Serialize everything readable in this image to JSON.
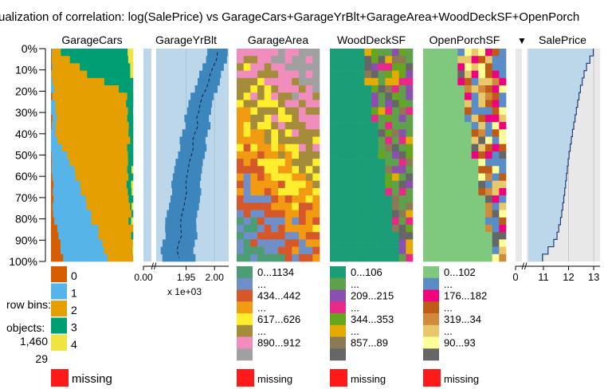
{
  "title": "ualization of correlation: log(SalePrice) vs GarageCars+GarageYrBlt+GarageArea+WoodDeckSF+OpenPorch",
  "y_ticks": [
    "0%",
    "10%",
    "20%",
    "30%",
    "40%",
    "50%",
    "60%",
    "70%",
    "80%",
    "90%",
    "100%"
  ],
  "row_bins_label": "row bins:",
  "row_bins_value": "29",
  "objects_label": "objects:",
  "objects_value": "1,460",
  "missing_label": "missing",
  "colors": {
    "missing": "#ff1a1a",
    "numeric_bg": "#bcd6ea",
    "numeric_bar": "#3c86bd",
    "sorted_bg": "#e8e8e8",
    "sorted_bar": "#bcd6ea",
    "sorted_line": "#1f3f7a"
  },
  "chart_data": {
    "type": "tableplot",
    "sort_by": "SalePrice",
    "sort_order": "descending",
    "y_percent_ticks": [
      0,
      10,
      20,
      30,
      40,
      50,
      60,
      70,
      80,
      90,
      100
    ],
    "columns": [
      {
        "name": "GarageCars",
        "kind": "categorical",
        "legend": [
          {
            "label": "0",
            "color": "#d55e00"
          },
          {
            "label": "1",
            "color": "#56b4e9"
          },
          {
            "label": "2",
            "color": "#e69f00"
          },
          {
            "label": "3",
            "color": "#009e73"
          },
          {
            "label": "4",
            "color": "#f0e442"
          }
        ],
        "approx_shares_top_to_bottom": [
          {
            "row_percent": 0,
            "shares": [
              0.0,
              0.02,
              0.1,
              0.82,
              0.06
            ]
          },
          {
            "row_percent": 10,
            "shares": [
              0.0,
              0.02,
              0.4,
              0.56,
              0.02
            ]
          },
          {
            "row_percent": 20,
            "shares": [
              0.0,
              0.02,
              0.9,
              0.08,
              0.0
            ]
          },
          {
            "row_percent": 40,
            "shares": [
              0.0,
              0.06,
              0.88,
              0.06,
              0.0
            ]
          },
          {
            "row_percent": 60,
            "shares": [
              0.01,
              0.3,
              0.64,
              0.05,
              0.0
            ]
          },
          {
            "row_percent": 80,
            "shares": [
              0.04,
              0.46,
              0.48,
              0.02,
              0.0
            ]
          },
          {
            "row_percent": 100,
            "shares": [
              0.15,
              0.53,
              0.31,
              0.01,
              0.0
            ]
          }
        ]
      },
      {
        "name": "GarageYrBlt",
        "kind": "numeric",
        "x_ticks": [
          "0.00",
          "1.95",
          "2.00"
        ],
        "x_tick_values": [
          0,
          1.95,
          2.0
        ],
        "axis_multiplier": "x 1e+03",
        "axis_break": true,
        "mean_top_to_bottom_x1000": [
          2.005,
          1.975,
          1.96,
          1.945,
          1.935
        ]
      },
      {
        "name": "GarageArea",
        "kind": "numeric-binned",
        "legend": [
          {
            "label": "0...1134",
            "color": "#4c9c74"
          },
          {
            "label": "...",
            "color": "#6f8fc8"
          },
          {
            "label": "434...442",
            "color": "#d6582a"
          },
          {
            "label": "...",
            "color": "#f29b12"
          },
          {
            "label": "617...626",
            "color": "#ffee2d"
          },
          {
            "label": "...",
            "color": "#a58c3a"
          },
          {
            "label": "890...912",
            "color": "#f08dbd"
          },
          {
            "label": "",
            "color": "#a0a0a0"
          }
        ]
      },
      {
        "name": "WoodDeckSF",
        "kind": "numeric-binned",
        "legend": [
          {
            "label": "0...106",
            "color": "#1b9e77"
          },
          {
            "label": "...",
            "color": "#5fa04a"
          },
          {
            "label": "209...215",
            "color": "#8b4fb0"
          },
          {
            "label": "...",
            "color": "#e7298a"
          },
          {
            "label": "344...353",
            "color": "#66a61e"
          },
          {
            "label": "...",
            "color": "#e6ab02"
          },
          {
            "label": "857...89",
            "color": "#8b7a55"
          },
          {
            "label": "",
            "color": "#666666"
          }
        ]
      },
      {
        "name": "OpenPorchSF",
        "kind": "numeric-binned",
        "legend": [
          {
            "label": "0...102",
            "color": "#7fc97f"
          },
          {
            "label": "...",
            "color": "#5a8cc8"
          },
          {
            "label": "176...182",
            "color": "#f0027f"
          },
          {
            "label": "...",
            "color": "#bf5b17"
          },
          {
            "label": "319...34",
            "color": "#d08a3a"
          },
          {
            "label": "...",
            "color": "#e8c86a"
          },
          {
            "label": "90...93",
            "color": "#ffff99"
          },
          {
            "label": "",
            "color": "#666666"
          }
        ]
      },
      {
        "name": "SalePrice",
        "kind": "numeric-sorted",
        "sort_marker": "▼",
        "x_ticks": [
          "0",
          "11",
          "12",
          "13"
        ],
        "x_tick_values": [
          0,
          11,
          12,
          13
        ],
        "axis_break": true,
        "curve_top_to_bottom": [
          {
            "row_percent": 0,
            "value": 13.05
          },
          {
            "row_percent": 10,
            "value": 12.66
          },
          {
            "row_percent": 20,
            "value": 12.45
          },
          {
            "row_percent": 30,
            "value": 12.3
          },
          {
            "row_percent": 40,
            "value": 12.15
          },
          {
            "row_percent": 50,
            "value": 12.02
          },
          {
            "row_percent": 60,
            "value": 11.92
          },
          {
            "row_percent": 70,
            "value": 11.82
          },
          {
            "row_percent": 80,
            "value": 11.7
          },
          {
            "row_percent": 90,
            "value": 11.5
          },
          {
            "row_percent": 100,
            "value": 10.85
          }
        ]
      }
    ]
  }
}
